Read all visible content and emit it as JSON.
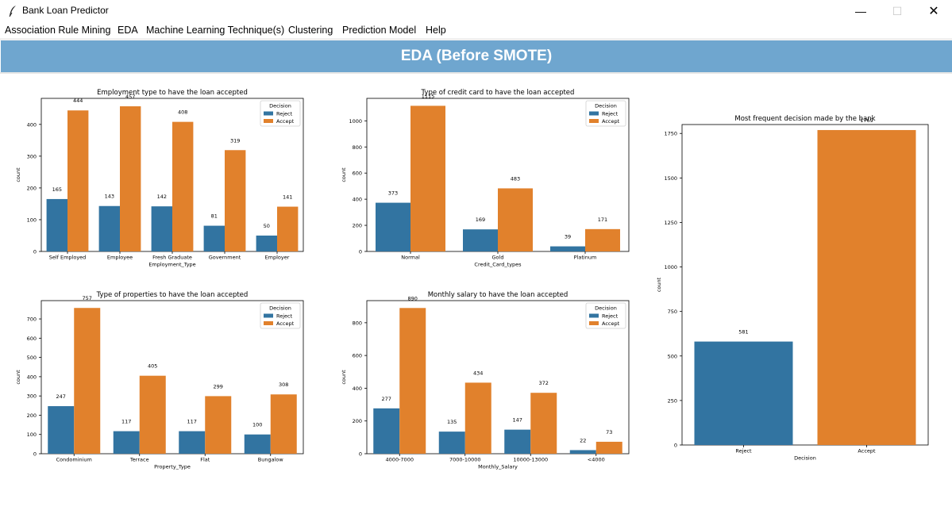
{
  "window": {
    "title": "Bank Loan Predictor",
    "min_glyph": "—",
    "max_glyph": "☐",
    "close_glyph": "✕"
  },
  "menu": [
    "Association Rule Mining",
    "EDA",
    "Machine Learning Technique(s)",
    "Clustering",
    "Prediction Model",
    "Help"
  ],
  "banner": {
    "title": "EDA (Before SMOTE)"
  },
  "colors": {
    "reject": "#3274a1",
    "accept": "#e1812c",
    "banner": "#6fa6cf"
  },
  "chart_data": [
    {
      "type": "bar",
      "title": "Employment type to have the loan accepted",
      "xlabel": "Employment_Type",
      "ylabel": "count",
      "categories": [
        "Self Employed",
        "Employee",
        "Fresh Graduate",
        "Government",
        "Employer"
      ],
      "series": [
        {
          "name": "Reject",
          "values": [
            165,
            143,
            142,
            81,
            50
          ]
        },
        {
          "name": "Accept",
          "values": [
            444,
            457,
            408,
            319,
            141
          ]
        }
      ],
      "ylim": [
        0,
        482
      ],
      "yticks": [
        0,
        100,
        200,
        300,
        400
      ],
      "legend": {
        "title": "Decision",
        "position": "top-right"
      }
    },
    {
      "type": "bar",
      "title": "Type of credit card to have the loan accepted",
      "xlabel": "Credit_Card_types",
      "ylabel": "count",
      "categories": [
        "Normal",
        "Gold",
        "Platinum"
      ],
      "series": [
        {
          "name": "Reject",
          "values": [
            373,
            169,
            39
          ]
        },
        {
          "name": "Accept",
          "values": [
            1115,
            483,
            171
          ]
        }
      ],
      "ylim": [
        0,
        1172
      ],
      "yticks": [
        0,
        200,
        400,
        600,
        800,
        1000
      ],
      "legend": {
        "title": "Decision",
        "position": "top-right"
      }
    },
    {
      "type": "bar",
      "title": "Type of properties to have the loan accepted",
      "xlabel": "Property_Type",
      "ylabel": "count",
      "categories": [
        "Condominium",
        "Terrace",
        "Flat",
        "Bungalow"
      ],
      "series": [
        {
          "name": "Reject",
          "values": [
            247,
            117,
            117,
            100
          ]
        },
        {
          "name": "Accept",
          "values": [
            757,
            405,
            299,
            308
          ]
        }
      ],
      "ylim": [
        0,
        795
      ],
      "yticks": [
        0,
        100,
        200,
        300,
        400,
        500,
        600,
        700
      ],
      "legend": {
        "title": "Decision",
        "position": "top-right"
      }
    },
    {
      "type": "bar",
      "title": "Monthly salary to have the loan accepted",
      "xlabel": "Monthly_Salary",
      "ylabel": "count",
      "categories": [
        "4000-7000",
        "7000-10000",
        "10000-13000",
        "<4000"
      ],
      "series": [
        {
          "name": "Reject",
          "values": [
            277,
            135,
            147,
            22
          ]
        },
        {
          "name": "Accept",
          "values": [
            890,
            434,
            372,
            73
          ]
        }
      ],
      "ylim": [
        0,
        935
      ],
      "yticks": [
        0,
        200,
        400,
        600,
        800
      ],
      "legend": {
        "title": "Decision",
        "position": "top-right"
      }
    },
    {
      "type": "bar",
      "title": "Most frequent decision made by the bank",
      "xlabel": "Decision",
      "ylabel": "count",
      "categories": [
        "Reject",
        "Accept"
      ],
      "values": [
        581,
        1769
      ],
      "ylim": [
        0,
        1800
      ],
      "yticks": [
        0,
        250,
        500,
        750,
        1000,
        1250,
        1500,
        1750
      ]
    }
  ]
}
